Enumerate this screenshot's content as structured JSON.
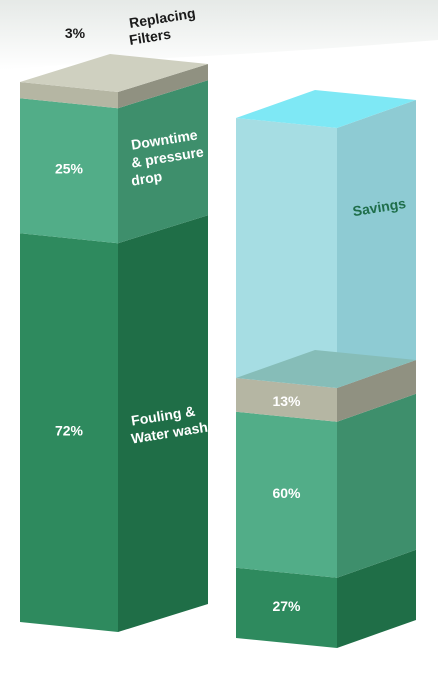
{
  "chart_data": {
    "type": "bar",
    "subtype": "stacked-3d",
    "categories": [
      "",
      ""
    ],
    "series": [
      {
        "name": "Fouling & Water wash",
        "values": [
          72,
          27
        ],
        "color": "#2e8a5e",
        "side_color": "#1f6e47",
        "label_color": "#ffffff"
      },
      {
        "name": "Downtime & pressure drop",
        "values": [
          25,
          60
        ],
        "color": "#52ad88",
        "side_color": "#3e8f6c",
        "label_color": "#ffffff"
      },
      {
        "name": "Replacing Filters",
        "values": [
          3,
          13
        ],
        "color": "#b5b6a3",
        "side_color": "#909181",
        "label_color": "#ffffff"
      },
      {
        "name": "Savings",
        "values": [
          0,
          100
        ],
        "color": "#a6dde3",
        "side_color": "#8ecbd3",
        "top_color": "#7ee8f5",
        "label_color": "#1e6e4a"
      }
    ],
    "labels": {
      "bar1": {
        "pct_fouling": "72%",
        "pct_downtime": "25%",
        "pct_filters": "3%",
        "name_fouling": [
          "Fouling &",
          "Water wash"
        ],
        "name_downtime": [
          "Downtime",
          "& pressure",
          "drop"
        ],
        "name_filters": [
          "Replacing",
          "Filters"
        ]
      },
      "bar2": {
        "pct_fouling": "27%",
        "pct_downtime": "60%",
        "pct_filters": "13%",
        "name_savings": "Savings"
      }
    },
    "title": "",
    "xlabel": "",
    "ylabel": ""
  }
}
